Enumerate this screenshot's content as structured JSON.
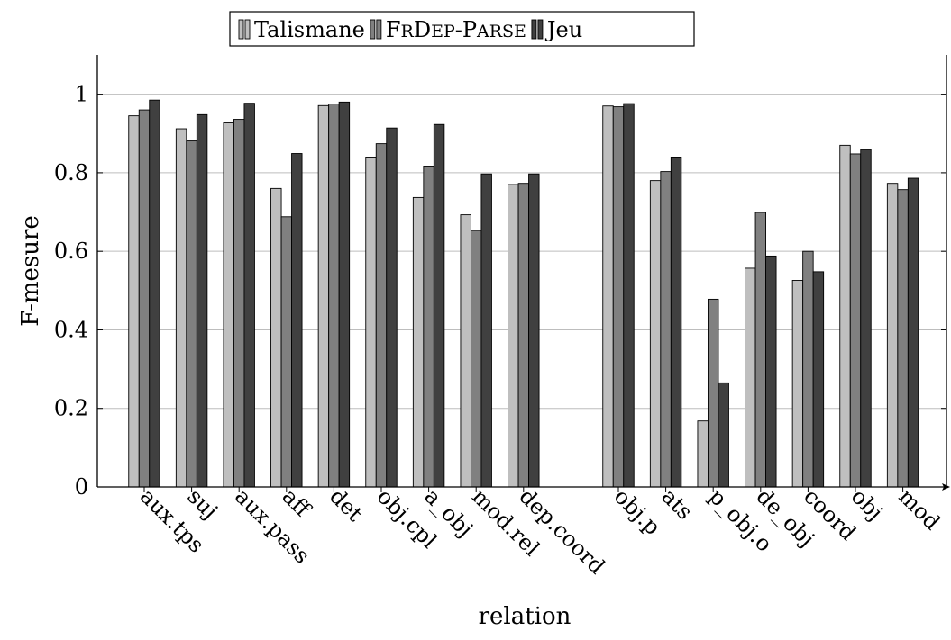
{
  "chart_data": {
    "type": "bar",
    "xlabel": "relation",
    "ylabel": "F-mesure",
    "ylim": [
      0,
      1.1
    ],
    "yticks": [
      "0",
      "0.2",
      "0.4",
      "0.6",
      "0.8",
      "1"
    ],
    "grid": "horizontal",
    "legend_position": "top",
    "categories": [
      "aux.tps",
      "suj",
      "aux.pass",
      "aff",
      "det",
      "obj.cpl",
      "a_obj",
      "mod.rel",
      "dep.coord",
      "obj.p",
      "ats",
      "p_obj.o",
      "de_obj",
      "coord",
      "obj",
      "mod"
    ],
    "category_groups": [
      9,
      7
    ],
    "series": [
      {
        "name": "Talismane",
        "color": "#bfbfbf",
        "values": [
          0.945,
          0.912,
          0.927,
          0.76,
          0.971,
          0.84,
          0.737,
          0.693,
          0.77,
          0.97,
          0.78,
          0.168,
          0.557,
          0.526,
          0.87,
          0.773
        ]
      },
      {
        "name": "FRDEP-PARSE",
        "name_parts": [
          "F",
          "R",
          "D",
          "EP",
          "-P",
          "ARSE"
        ],
        "color": "#808080",
        "values": [
          0.96,
          0.881,
          0.936,
          0.688,
          0.975,
          0.874,
          0.817,
          0.653,
          0.773,
          0.968,
          0.803,
          0.478,
          0.699,
          0.6,
          0.848,
          0.757
        ]
      },
      {
        "name": "Jeu",
        "color": "#404040",
        "values": [
          0.985,
          0.948,
          0.977,
          0.849,
          0.98,
          0.914,
          0.923,
          0.797,
          0.797,
          0.976,
          0.84,
          0.265,
          0.588,
          0.548,
          0.859,
          0.786
        ]
      }
    ]
  }
}
